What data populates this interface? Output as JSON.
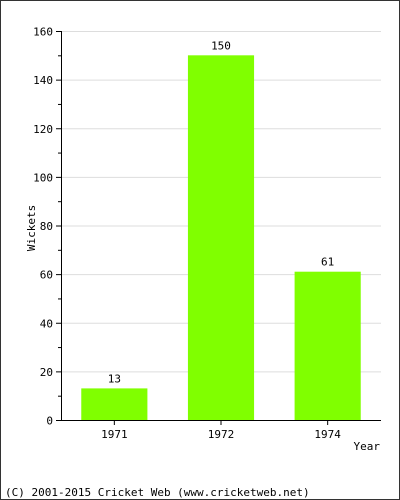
{
  "chart_data": {
    "type": "bar",
    "categories": [
      "1971",
      "1972",
      "1974"
    ],
    "values": [
      13,
      150,
      61
    ],
    "xlabel": "Year",
    "ylabel": "Wickets",
    "ylim": [
      0,
      160
    ],
    "yticks": [
      0,
      20,
      40,
      60,
      80,
      100,
      120,
      140,
      160
    ],
    "grid": true,
    "bar_color": "#80ff00",
    "grid_color": "#dddddd"
  },
  "footer": {
    "copyright": "(C) 2001-2015 Cricket Web (www.cricketweb.net)"
  }
}
